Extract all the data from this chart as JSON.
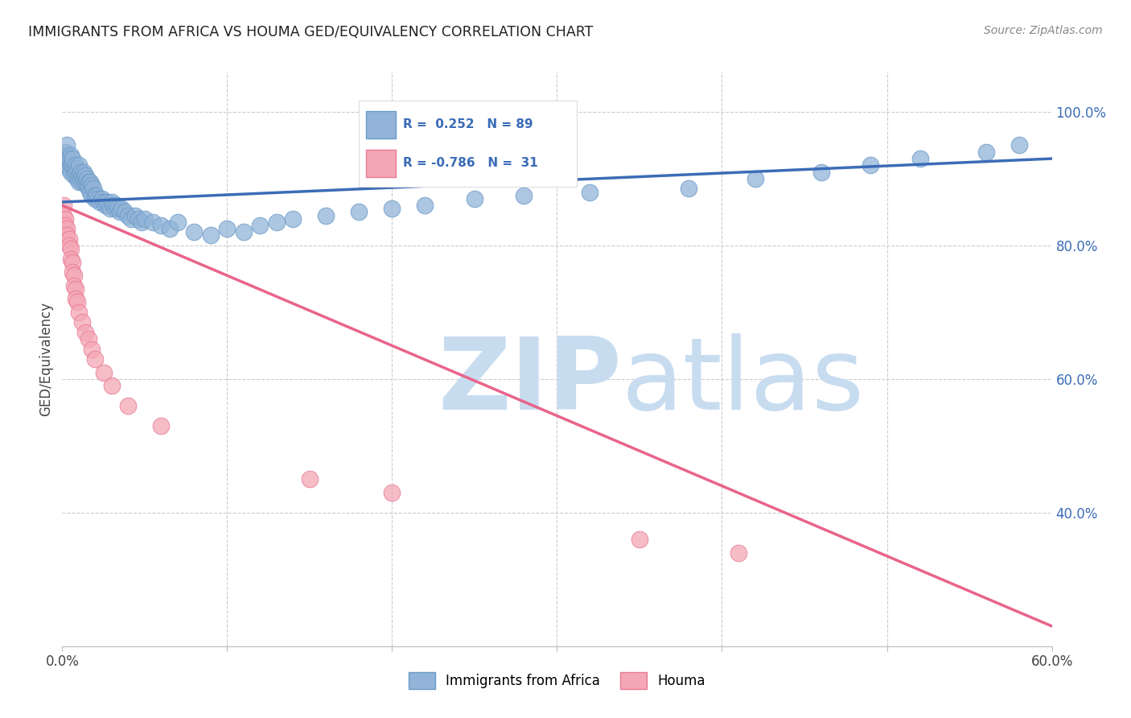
{
  "title": "IMMIGRANTS FROM AFRICA VS HOUMA GED/EQUIVALENCY CORRELATION CHART",
  "source": "Source: ZipAtlas.com",
  "ylabel": "GED/Equivalency",
  "xlim": [
    0.0,
    0.6
  ],
  "ylim": [
    0.2,
    1.06
  ],
  "xticks": [
    0.0,
    0.1,
    0.2,
    0.3,
    0.4,
    0.5,
    0.6
  ],
  "xticklabels_show": [
    "0.0%",
    "",
    "",
    "",
    "",
    "",
    "60.0%"
  ],
  "yticks": [
    0.4,
    0.6,
    0.8,
    1.0
  ],
  "yticklabels": [
    "40.0%",
    "60.0%",
    "80.0%",
    "100.0%"
  ],
  "blue_R": 0.252,
  "blue_N": 89,
  "pink_R": -0.786,
  "pink_N": 31,
  "blue_color": "#92B4D8",
  "pink_color": "#F4A7B5",
  "blue_edge_color": "#6B9BC8",
  "pink_edge_color": "#E87A95",
  "blue_line_color": "#3B6CB7",
  "pink_line_color": "#E8648A",
  "legend_blue_label": "Immigrants from Africa",
  "legend_pink_label": "Houma",
  "watermark_zip": "ZIP",
  "watermark_atlas": "atlas",
  "watermark_color": "#C8DCF0",
  "grid_color": "#CCCCCC",
  "background_color": "#FFFFFF",
  "blue_scatter_x": [
    0.001,
    0.002,
    0.002,
    0.003,
    0.003,
    0.003,
    0.004,
    0.004,
    0.005,
    0.005,
    0.005,
    0.006,
    0.006,
    0.007,
    0.007,
    0.008,
    0.008,
    0.009,
    0.009,
    0.01,
    0.01,
    0.01,
    0.011,
    0.011,
    0.012,
    0.012,
    0.013,
    0.013,
    0.014,
    0.014,
    0.015,
    0.015,
    0.016,
    0.016,
    0.017,
    0.017,
    0.018,
    0.018,
    0.019,
    0.02,
    0.02,
    0.021,
    0.022,
    0.023,
    0.024,
    0.025,
    0.026,
    0.027,
    0.028,
    0.029,
    0.03,
    0.031,
    0.032,
    0.033,
    0.034,
    0.035,
    0.036,
    0.038,
    0.04,
    0.042,
    0.044,
    0.046,
    0.048,
    0.05,
    0.055,
    0.06,
    0.065,
    0.07,
    0.08,
    0.09,
    0.1,
    0.11,
    0.12,
    0.13,
    0.14,
    0.16,
    0.18,
    0.2,
    0.22,
    0.25,
    0.28,
    0.32,
    0.38,
    0.42,
    0.46,
    0.49,
    0.52,
    0.56,
    0.58
  ],
  "blue_scatter_y": [
    0.93,
    0.94,
    0.92,
    0.935,
    0.95,
    0.925,
    0.915,
    0.93,
    0.92,
    0.935,
    0.91,
    0.92,
    0.93,
    0.915,
    0.905,
    0.92,
    0.91,
    0.915,
    0.9,
    0.92,
    0.905,
    0.895,
    0.91,
    0.9,
    0.905,
    0.895,
    0.9,
    0.91,
    0.895,
    0.905,
    0.89,
    0.9,
    0.895,
    0.885,
    0.895,
    0.88,
    0.89,
    0.875,
    0.885,
    0.875,
    0.87,
    0.875,
    0.87,
    0.865,
    0.87,
    0.865,
    0.86,
    0.865,
    0.86,
    0.855,
    0.865,
    0.86,
    0.855,
    0.86,
    0.855,
    0.85,
    0.855,
    0.85,
    0.845,
    0.84,
    0.845,
    0.84,
    0.835,
    0.84,
    0.835,
    0.83,
    0.825,
    0.835,
    0.82,
    0.815,
    0.825,
    0.82,
    0.83,
    0.835,
    0.84,
    0.845,
    0.85,
    0.855,
    0.86,
    0.87,
    0.875,
    0.88,
    0.885,
    0.9,
    0.91,
    0.92,
    0.93,
    0.94,
    0.95
  ],
  "pink_scatter_x": [
    0.001,
    0.001,
    0.002,
    0.002,
    0.003,
    0.003,
    0.004,
    0.004,
    0.005,
    0.005,
    0.006,
    0.006,
    0.007,
    0.007,
    0.008,
    0.008,
    0.009,
    0.01,
    0.012,
    0.014,
    0.016,
    0.018,
    0.02,
    0.025,
    0.03,
    0.04,
    0.06,
    0.15,
    0.2,
    0.35,
    0.41
  ],
  "pink_scatter_y": [
    0.86,
    0.845,
    0.84,
    0.83,
    0.825,
    0.815,
    0.81,
    0.8,
    0.795,
    0.78,
    0.775,
    0.76,
    0.755,
    0.74,
    0.735,
    0.72,
    0.715,
    0.7,
    0.685,
    0.67,
    0.66,
    0.645,
    0.63,
    0.61,
    0.59,
    0.56,
    0.53,
    0.45,
    0.43,
    0.36,
    0.34
  ],
  "blue_trendline_x0": 0.0,
  "blue_trendline_y0": 0.865,
  "blue_trendline_x1": 0.6,
  "blue_trendline_y1": 0.93,
  "pink_trendline_x0": 0.0,
  "pink_trendline_y0": 0.86,
  "pink_trendline_x1": 0.6,
  "pink_trendline_y1": 0.23
}
